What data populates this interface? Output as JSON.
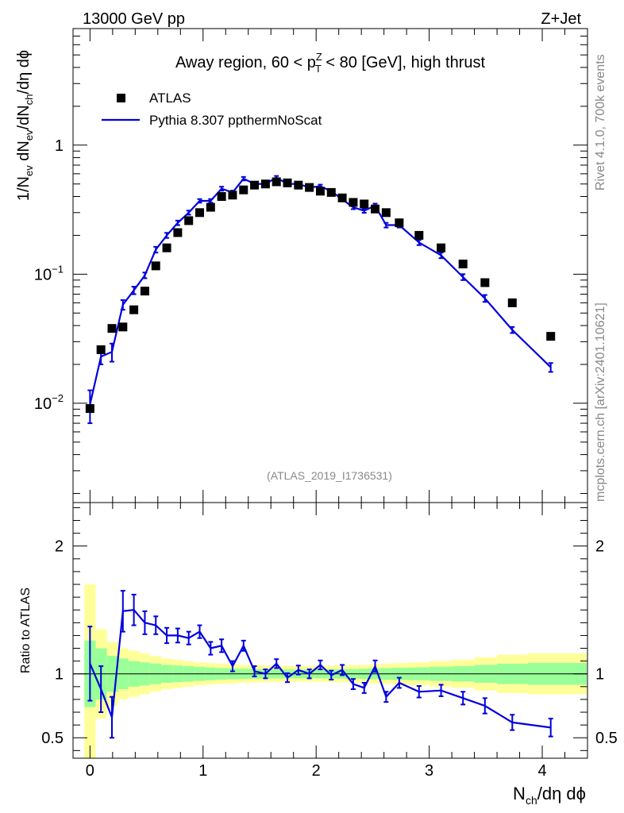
{
  "header": {
    "energy_label": "13000 GeV pp",
    "process_label": "Z+Jet"
  },
  "side_labels": {
    "rivet": "Rivet 4.1.0,  700k events",
    "mcplots": "mcplots.cern.ch [arXiv:2401.10621]"
  },
  "chart_data": [
    {
      "type": "scatter",
      "title": "Away region, 60 < p_T^Z < 80 [GeV], high thrust",
      "title_parts": {
        "pre": "Away region, 60 < p",
        "sup": "Z",
        "sub": "T",
        "post": " < 80 [GeV], high thrust"
      },
      "xlabel": "N_ch/dη dϕ",
      "ylabel": "1/N_ev dN_ev/dN_ch/dη dϕ",
      "yscale": "log",
      "xlim": [
        -0.15,
        4.4
      ],
      "ylim": [
        0.0017,
        8.0
      ],
      "y_ticks": [
        {
          "value": 0.01,
          "base": "10",
          "exp": "−2"
        },
        {
          "value": 0.1,
          "base": "10",
          "exp": "−1"
        },
        {
          "value": 1,
          "label": "1"
        }
      ],
      "analysis_id": "(ATLAS_2019_I1736531)",
      "legend": [
        {
          "name": "ATLAS",
          "marker": "square",
          "color": "#000000"
        },
        {
          "name": "Pythia 8.307 ppthermNoScat",
          "marker": "line",
          "color": "#0000dd"
        }
      ],
      "series": [
        {
          "name": "ATLAS",
          "x": [
            0.0,
            0.097,
            0.194,
            0.291,
            0.388,
            0.485,
            0.582,
            0.679,
            0.776,
            0.873,
            0.97,
            1.067,
            1.164,
            1.261,
            1.358,
            1.455,
            1.552,
            1.649,
            1.746,
            1.843,
            1.94,
            2.037,
            2.134,
            2.231,
            2.328,
            2.425,
            2.522,
            2.619,
            2.735,
            2.91,
            3.105,
            3.299,
            3.493,
            3.735,
            4.075
          ],
          "y": [
            0.0091,
            0.026,
            0.038,
            0.039,
            0.053,
            0.074,
            0.116,
            0.16,
            0.21,
            0.26,
            0.3,
            0.33,
            0.4,
            0.41,
            0.45,
            0.49,
            0.5,
            0.52,
            0.51,
            0.49,
            0.47,
            0.44,
            0.43,
            0.39,
            0.36,
            0.35,
            0.32,
            0.3,
            0.25,
            0.2,
            0.16,
            0.12,
            0.086,
            0.06,
            0.033
          ]
        },
        {
          "name": "Pythia 8.307 ppthermNoScat",
          "x": [
            0.0,
            0.097,
            0.194,
            0.291,
            0.388,
            0.485,
            0.582,
            0.679,
            0.776,
            0.873,
            0.97,
            1.067,
            1.164,
            1.261,
            1.358,
            1.455,
            1.552,
            1.649,
            1.746,
            1.843,
            1.94,
            2.037,
            2.134,
            2.231,
            2.328,
            2.425,
            2.522,
            2.619,
            2.735,
            2.91,
            3.105,
            3.299,
            3.493,
            3.735,
            4.075
          ],
          "y": [
            0.0098,
            0.023,
            0.025,
            0.058,
            0.075,
            0.098,
            0.155,
            0.2,
            0.25,
            0.3,
            0.37,
            0.37,
            0.46,
            0.43,
            0.55,
            0.5,
            0.5,
            0.56,
            0.5,
            0.5,
            0.47,
            0.48,
            0.44,
            0.38,
            0.33,
            0.31,
            0.34,
            0.24,
            0.24,
            0.176,
            0.14,
            0.095,
            0.065,
            0.037,
            0.019
          ],
          "yerr": [
            0.0028,
            0.003,
            0.004,
            0.005,
            0.005,
            0.005,
            0.008,
            0.009,
            0.01,
            0.011,
            0.012,
            0.012,
            0.016,
            0.014,
            0.017,
            0.015,
            0.015,
            0.017,
            0.015,
            0.015,
            0.014,
            0.014,
            0.013,
            0.012,
            0.011,
            0.011,
            0.012,
            0.01,
            0.01,
            0.008,
            0.007,
            0.005,
            0.004,
            0.002,
            0.0015
          ]
        }
      ]
    },
    {
      "type": "line",
      "ylabel": "Ratio to ATLAS",
      "xlabel": "N_ch/dη dϕ",
      "xlim": [
        -0.15,
        4.4
      ],
      "ylim": [
        0.34,
        2.34
      ],
      "y_ticks": [
        0.5,
        1,
        2
      ],
      "x_ticks": [
        0,
        1,
        2,
        3,
        4
      ],
      "reference_line": 1,
      "bands": {
        "bin_edges": [
          -0.05,
          0.05,
          0.15,
          0.25,
          0.34,
          0.44,
          0.53,
          0.63,
          0.73,
          0.82,
          0.92,
          1.02,
          1.11,
          1.21,
          1.31,
          1.4,
          1.5,
          1.6,
          1.7,
          1.79,
          1.89,
          1.99,
          2.08,
          2.18,
          2.28,
          2.37,
          2.47,
          2.57,
          2.67,
          2.82,
          3.0,
          3.2,
          3.4,
          3.6,
          3.87,
          4.4
        ],
        "inner_half_width": [
          0.26,
          0.2,
          0.14,
          0.12,
          0.1,
          0.09,
          0.08,
          0.07,
          0.065,
          0.06,
          0.055,
          0.05,
          0.045,
          0.042,
          0.04,
          0.038,
          0.037,
          0.036,
          0.035,
          0.035,
          0.035,
          0.035,
          0.036,
          0.037,
          0.038,
          0.04,
          0.042,
          0.045,
          0.048,
          0.05,
          0.055,
          0.06,
          0.07,
          0.08,
          0.085
        ],
        "outer_half_width": [
          0.7,
          0.35,
          0.25,
          0.2,
          0.18,
          0.16,
          0.14,
          0.12,
          0.11,
          0.1,
          0.09,
          0.085,
          0.08,
          0.075,
          0.07,
          0.068,
          0.066,
          0.064,
          0.062,
          0.062,
          0.062,
          0.062,
          0.064,
          0.066,
          0.068,
          0.07,
          0.075,
          0.08,
          0.085,
          0.09,
          0.1,
          0.11,
          0.13,
          0.15,
          0.16
        ],
        "inner_color": "#99ff99",
        "outer_color": "#ffff99"
      },
      "series": [
        {
          "name": "Pythia 8.307 ppthermNoScat / ATLAS",
          "x": [
            0.0,
            0.097,
            0.194,
            0.291,
            0.388,
            0.485,
            0.582,
            0.679,
            0.776,
            0.873,
            0.97,
            1.067,
            1.164,
            1.261,
            1.358,
            1.455,
            1.552,
            1.649,
            1.746,
            1.843,
            1.94,
            2.037,
            2.134,
            2.231,
            2.328,
            2.425,
            2.522,
            2.619,
            2.735,
            2.91,
            3.105,
            3.299,
            3.493,
            3.735,
            4.075
          ],
          "y": [
            1.08,
            0.88,
            0.66,
            1.49,
            1.5,
            1.4,
            1.38,
            1.3,
            1.3,
            1.28,
            1.33,
            1.2,
            1.22,
            1.06,
            1.22,
            1.02,
            1.0,
            1.08,
            0.97,
            1.03,
            1.0,
            1.07,
            0.99,
            1.03,
            0.92,
            0.89,
            1.06,
            0.82,
            0.93,
            0.86,
            0.87,
            0.81,
            0.75,
            0.62,
            0.58
          ],
          "yerr": [
            0.29,
            0.18,
            0.16,
            0.16,
            0.12,
            0.09,
            0.07,
            0.06,
            0.055,
            0.05,
            0.05,
            0.05,
            0.05,
            0.04,
            0.04,
            0.04,
            0.035,
            0.035,
            0.035,
            0.035,
            0.035,
            0.035,
            0.035,
            0.04,
            0.04,
            0.04,
            0.045,
            0.04,
            0.04,
            0.045,
            0.045,
            0.05,
            0.06,
            0.06,
            0.07
          ],
          "color": "#0000dd"
        }
      ]
    }
  ]
}
